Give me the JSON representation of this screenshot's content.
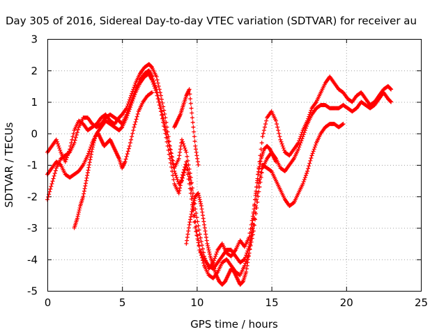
{
  "chart_data": {
    "type": "scatter",
    "title": "Day 305 of 2016, Sidereal Day-to-day VTEC variation (SDTVAR) for receiver au",
    "xlabel": "GPS time / hours",
    "ylabel": "SDTVAR / TECUs",
    "xlim": [
      0,
      25
    ],
    "ylim": [
      -5,
      3
    ],
    "x_ticks": [
      "0",
      "5",
      "10",
      "15",
      "20",
      "25"
    ],
    "y_ticks": [
      "3",
      "2",
      "1",
      "0",
      "-1",
      "-2",
      "-3",
      "-4",
      "-5"
    ],
    "grid": true,
    "marker": "+",
    "color": "#ff0000",
    "series": [
      {
        "x": [
          0.0,
          0.3,
          0.6,
          0.9,
          1.2,
          1.5,
          1.8,
          2.1,
          2.4,
          2.7,
          3.0,
          3.3,
          3.6,
          3.9,
          4.2,
          4.5,
          4.8,
          5.0,
          5.3,
          5.6,
          5.9,
          6.2,
          6.5,
          6.8,
          7.0,
          7.3,
          7.6,
          7.9,
          8.2,
          8.5,
          8.8,
          9.0,
          9.3,
          9.6,
          9.9,
          10.2,
          10.5,
          10.8,
          11.1,
          11.4,
          11.7,
          12.0,
          12.3,
          12.6,
          12.9,
          13.2,
          13.5,
          13.8,
          14.1,
          14.4,
          14.7,
          15.0,
          15.3,
          15.6,
          15.9,
          16.2,
          16.5,
          16.8,
          17.1,
          17.4,
          17.7,
          18.0,
          18.3,
          18.6,
          18.9,
          19.2,
          19.5,
          19.8,
          20.1,
          20.4,
          20.7,
          21.0,
          21.3,
          21.6,
          21.9,
          22.2,
          22.5,
          22.8,
          23.0
        ],
        "y": [
          -0.6,
          -0.4,
          -0.2,
          -0.6,
          -0.9,
          -0.5,
          0.1,
          0.4,
          0.3,
          0.1,
          0.2,
          0.3,
          0.5,
          0.6,
          0.4,
          0.3,
          0.5,
          0.6,
          0.8,
          1.2,
          1.6,
          1.9,
          2.1,
          2.2,
          2.1,
          1.8,
          1.2,
          0.5,
          -0.4,
          -1.1,
          -0.8,
          -0.2,
          -0.6,
          -1.4,
          -2.4,
          -3.2,
          -3.9,
          -4.3,
          -4.1,
          -3.7,
          -3.5,
          -3.8,
          -3.9,
          -3.7,
          -3.4,
          -3.6,
          -3.3,
          -2.5,
          -1.3,
          -0.1,
          0.5,
          0.7,
          0.4,
          -0.2,
          -0.6,
          -0.7,
          -0.5,
          -0.3,
          0.1,
          0.4,
          0.8,
          1.0,
          1.3,
          1.6,
          1.8,
          1.6,
          1.4,
          1.3,
          1.1,
          1.0,
          1.2,
          1.3,
          1.1,
          0.9,
          1.0,
          1.2,
          1.4,
          1.5,
          1.4
        ]
      },
      {
        "x": [
          0.0,
          0.3,
          0.6,
          0.9,
          1.2,
          1.5,
          1.8,
          2.1,
          2.4,
          2.7,
          3.0,
          3.3,
          3.6,
          3.9,
          4.2,
          4.5,
          4.8,
          5.0,
          5.3,
          5.6,
          5.9,
          6.2,
          6.5,
          6.8,
          7.0,
          7.3,
          7.6,
          7.9,
          8.2,
          8.5,
          8.8,
          9.0,
          9.3,
          9.6,
          9.9,
          10.2,
          10.5,
          10.8,
          11.1,
          11.4,
          11.7,
          12.0,
          12.3,
          12.6,
          12.9,
          13.2,
          13.5,
          13.8,
          14.1,
          14.4,
          14.7,
          15.0,
          15.3,
          15.6,
          15.9,
          16.2,
          16.5,
          16.8,
          17.1,
          17.4,
          17.7,
          18.0,
          18.3,
          18.6,
          18.9,
          19.2,
          19.5,
          19.8,
          20.1,
          20.4,
          20.7,
          21.0,
          21.3,
          21.6,
          21.9,
          22.2,
          22.5,
          22.8,
          23.0
        ],
        "y": [
          -1.3,
          -1.1,
          -0.9,
          -1.0,
          -1.3,
          -1.4,
          -1.3,
          -1.2,
          -1.0,
          -0.7,
          -0.3,
          0.0,
          0.2,
          0.4,
          0.3,
          0.2,
          0.1,
          0.2,
          0.5,
          0.9,
          1.3,
          1.6,
          1.8,
          1.9,
          1.7,
          1.3,
          0.7,
          0.0,
          -0.8,
          -1.6,
          -1.9,
          -1.4,
          -0.9,
          -1.6,
          -2.8,
          -3.7,
          -4.2,
          -4.5,
          -4.6,
          -4.4,
          -4.1,
          -4.0,
          -4.2,
          -4.4,
          -4.5,
          -4.2,
          -3.8,
          -3.1,
          -2.0,
          -1.1,
          -0.8,
          -0.6,
          -0.8,
          -1.1,
          -1.2,
          -1.0,
          -0.8,
          -0.5,
          -0.1,
          0.3,
          0.6,
          0.8,
          0.9,
          0.9,
          0.8,
          0.8,
          0.8,
          0.9,
          0.8,
          0.7,
          0.8,
          1.0,
          0.9,
          0.8,
          0.9,
          1.1,
          1.3,
          1.1,
          1.0
        ]
      },
      {
        "x": [
          0.0,
          0.3,
          0.6,
          0.9,
          1.2,
          1.5,
          1.8,
          2.1,
          2.4,
          2.7,
          3.0,
          3.3,
          3.6,
          3.9,
          4.2,
          4.5,
          4.8,
          5.0,
          5.3,
          5.6,
          5.9,
          6.2,
          6.5,
          6.8,
          7.0,
          7.3,
          7.6,
          7.9,
          8.2,
          8.5,
          8.8,
          9.0,
          9.3,
          9.6,
          9.9,
          10.2,
          10.5,
          10.8,
          11.1,
          11.4,
          11.7,
          12.0,
          12.3,
          12.6,
          12.9,
          13.2,
          13.5,
          13.8,
          14.1,
          14.4,
          14.7,
          15.0,
          15.3,
          15.6,
          15.9,
          16.2,
          16.5,
          16.8,
          17.1,
          17.4,
          17.7,
          18.0,
          18.3,
          18.6,
          18.9,
          19.2,
          19.5,
          19.8
        ],
        "y": [
          -2.1,
          -1.6,
          -1.1,
          -0.8,
          -0.7,
          -0.6,
          -0.3,
          0.2,
          0.5,
          0.5,
          0.3,
          0.2,
          0.3,
          0.5,
          0.6,
          0.5,
          0.4,
          0.3,
          0.6,
          1.0,
          1.4,
          1.7,
          1.9,
          2.0,
          1.8,
          1.4,
          0.8,
          0.2,
          -0.5,
          -1.2,
          -1.6,
          -1.5,
          -1.0,
          -1.9,
          -3.0,
          -3.7,
          -4.0,
          -4.2,
          -4.3,
          -4.1,
          -3.9,
          -3.7,
          -3.7,
          -3.9,
          -4.1,
          -4.0,
          -3.6,
          -2.9,
          -1.7,
          -1.0,
          -1.1,
          -1.2,
          -1.5,
          -1.8,
          -2.1,
          -2.3,
          -2.2,
          -1.9,
          -1.6,
          -1.2,
          -0.7,
          -0.3,
          0.0,
          0.2,
          0.3,
          0.3,
          0.2,
          0.3
        ]
      },
      {
        "x": [
          1.8,
          2.0,
          2.2,
          2.4,
          2.6,
          2.8,
          3.0,
          3.2,
          3.4,
          3.6,
          3.8,
          4.0,
          4.2,
          4.4,
          4.6,
          4.8,
          5.0,
          5.2,
          5.5,
          5.8,
          6.1,
          6.4,
          6.7,
          7.0
        ],
        "y": [
          -3.0,
          -2.7,
          -2.3,
          -2.0,
          -1.5,
          -1.0,
          -0.5,
          -0.1,
          0.0,
          -0.2,
          -0.4,
          -0.3,
          -0.2,
          -0.4,
          -0.6,
          -0.8,
          -1.1,
          -0.9,
          -0.4,
          0.2,
          0.7,
          1.0,
          1.2,
          1.3
        ]
      },
      {
        "x": [
          9.3,
          9.5,
          9.7,
          9.9,
          10.1,
          10.3,
          10.5,
          10.7,
          10.9,
          11.1,
          11.3,
          11.5,
          11.7,
          11.9,
          12.1,
          12.3,
          12.5,
          12.7,
          12.9,
          13.1,
          13.3,
          13.5,
          13.7,
          13.9,
          14.1,
          14.3,
          14.5,
          14.7,
          14.9,
          15.1,
          15.3
        ],
        "y": [
          -3.5,
          -2.9,
          -2.4,
          -2.0,
          -1.9,
          -2.3,
          -2.9,
          -3.5,
          -3.9,
          -4.2,
          -4.5,
          -4.7,
          -4.8,
          -4.7,
          -4.5,
          -4.3,
          -4.4,
          -4.6,
          -4.8,
          -4.7,
          -4.4,
          -3.8,
          -3.0,
          -2.1,
          -1.3,
          -0.8,
          -0.5,
          -0.4,
          -0.5,
          -0.7,
          -0.9
        ]
      },
      {
        "x": [
          8.5,
          8.7,
          8.9,
          9.1,
          9.3,
          9.5,
          9.7,
          9.9,
          10.1
        ],
        "y": [
          0.2,
          0.4,
          0.6,
          0.9,
          1.2,
          1.4,
          0.5,
          -0.4,
          -1.0
        ]
      }
    ]
  }
}
